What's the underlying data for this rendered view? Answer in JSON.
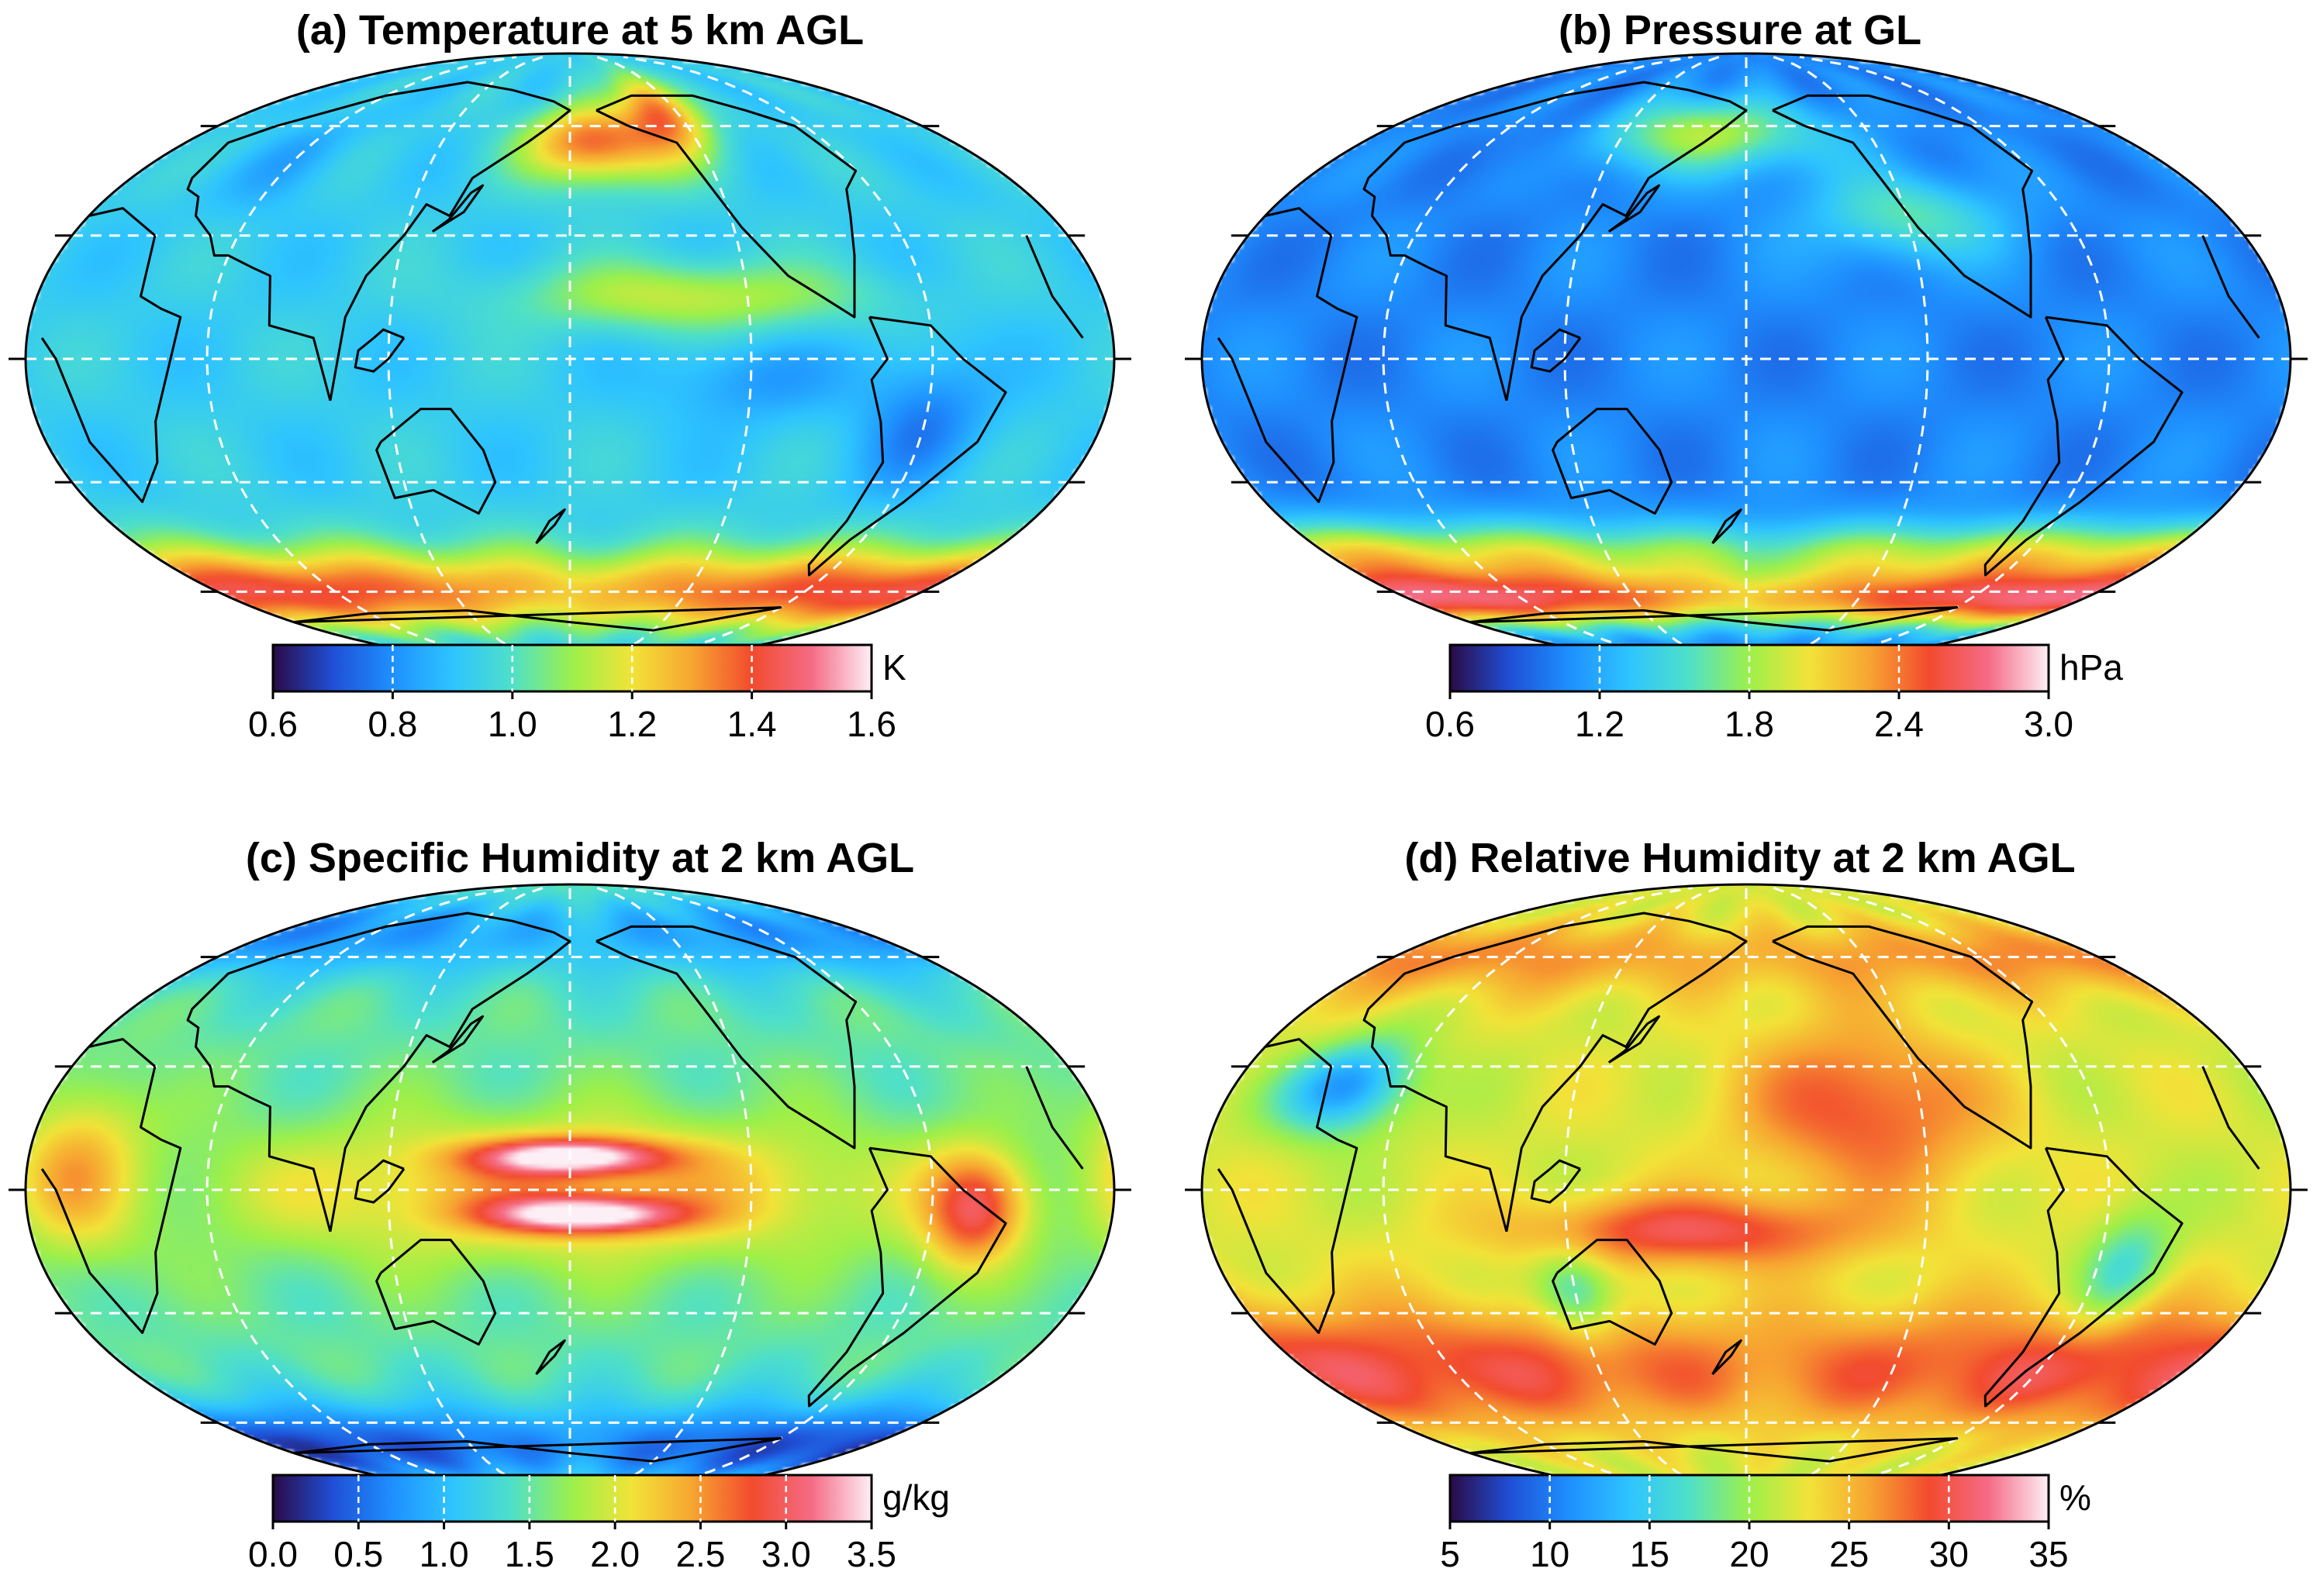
{
  "panels": [
    {
      "title": "(a) Temperature at 5 km AGL",
      "unit": "K",
      "ticks": [
        "0.6",
        "0.8",
        "1.0",
        "1.2",
        "1.4",
        "1.6"
      ],
      "colormap": [
        "#2b0a45",
        "#1f4fd6",
        "#1e90ff",
        "#2ec4ff",
        "#4fe0c8",
        "#9cf04a",
        "#f2e338",
        "#f7a531",
        "#f24b2e",
        "#f56b86",
        "#fdeff6"
      ],
      "field": {
        "base": 0.93,
        "blobs": [
          {
            "lon": -170,
            "lat": 55,
            "val": 1.38,
            "sl": 22,
            "sb": 8
          },
          {
            "lon": -130,
            "lat": 65,
            "val": 1.35,
            "sl": 15,
            "sb": 10
          },
          {
            "lon": 0,
            "lat": -60,
            "val": 1.43,
            "sl": 180,
            "sb": 9
          },
          {
            "lon": -140,
            "lat": 15,
            "val": 1.15,
            "sl": 40,
            "sb": 6
          },
          {
            "lon": -60,
            "lat": -15,
            "val": 0.78,
            "sl": 15,
            "sb": 12
          },
          {
            "lon": -120,
            "lat": -5,
            "val": 0.82,
            "sl": 20,
            "sb": 7
          },
          {
            "lon": 60,
            "lat": 50,
            "val": 0.86,
            "sl": 15,
            "sb": 10
          }
        ]
      }
    },
    {
      "title": "(b) Pressure at GL",
      "unit": "hPa",
      "ticks": [
        "0.6",
        "1.2",
        "1.8",
        "2.4",
        "3.0"
      ],
      "colormap": [
        "#2b0a45",
        "#1f4fd6",
        "#1e90ff",
        "#2ec4ff",
        "#4fe0c8",
        "#9cf04a",
        "#f2e338",
        "#f7a531",
        "#f24b2e",
        "#f56b86",
        "#fdeff6"
      ],
      "field": {
        "base": 1.05,
        "blobs": [
          {
            "lon": 0,
            "lat": -62,
            "val": 2.7,
            "sl": 180,
            "sb": 7
          },
          {
            "lon": 0,
            "lat": -48,
            "val": 1.85,
            "sl": 180,
            "sb": 6
          },
          {
            "lon": 160,
            "lat": 58,
            "val": 1.85,
            "sl": 40,
            "sb": 8
          },
          {
            "lon": -120,
            "lat": 35,
            "val": 1.6,
            "sl": 25,
            "sb": 8
          },
          {
            "lon": 90,
            "lat": 55,
            "val": 0.85,
            "sl": 15,
            "sb": 8
          }
        ]
      }
    },
    {
      "title": "(c) Specific Humidity at 2 km AGL",
      "unit": "g/kg",
      "ticks": [
        "0.0",
        "0.5",
        "1.0",
        "1.5",
        "2.0",
        "2.5",
        "3.0",
        "3.5"
      ],
      "colormap": [
        "#2b0a45",
        "#1f4fd6",
        "#1e90ff",
        "#2ec4ff",
        "#4fe0c8",
        "#9cf04a",
        "#f2e338",
        "#f7a531",
        "#f24b2e",
        "#f56b86",
        "#fdeff6"
      ],
      "field": {
        "base": 1.5,
        "blobs": [
          {
            "lon": 180,
            "lat": 8,
            "val": 3.2,
            "sl": 22,
            "sb": 3
          },
          {
            "lon": 185,
            "lat": -6,
            "val": 3.2,
            "sl": 22,
            "sb": 3
          },
          {
            "lon": 180,
            "lat": 0,
            "val": 2.4,
            "sl": 80,
            "sb": 12
          },
          {
            "lon": 0,
            "lat": -68,
            "val": 0.3,
            "sl": 180,
            "sb": 10
          },
          {
            "lon": 0,
            "lat": 68,
            "val": 0.7,
            "sl": 180,
            "sb": 10
          },
          {
            "lon": -45,
            "lat": -5,
            "val": 2.8,
            "sl": 12,
            "sb": 10
          },
          {
            "lon": 15,
            "lat": 5,
            "val": 2.3,
            "sl": 15,
            "sb": 15
          }
        ]
      }
    },
    {
      "title": "(d) Relative Humidity at 2 km AGL",
      "unit": "%",
      "ticks": [
        "5",
        "10",
        "15",
        "20",
        "25",
        "30",
        "35"
      ],
      "colormap": [
        "#2b0a45",
        "#1f4fd6",
        "#1e90ff",
        "#2ec4ff",
        "#4fe0c8",
        "#9cf04a",
        "#f2e338",
        "#f7a531",
        "#f24b2e",
        "#f56b86",
        "#fdeff6"
      ],
      "field": {
        "base": 22,
        "blobs": [
          {
            "lon": 0,
            "lat": -45,
            "val": 30,
            "sl": 180,
            "sb": 12
          },
          {
            "lon": -140,
            "lat": 20,
            "val": 29,
            "sl": 30,
            "sb": 15
          },
          {
            "lon": 160,
            "lat": -10,
            "val": 30,
            "sl": 40,
            "sb": 6
          },
          {
            "lon": 40,
            "lat": 25,
            "val": 11,
            "sl": 15,
            "sb": 8
          },
          {
            "lon": 120,
            "lat": -25,
            "val": 15,
            "sl": 10,
            "sb": 8
          },
          {
            "lon": -50,
            "lat": -20,
            "val": 16,
            "sl": 10,
            "sb": 10
          },
          {
            "lon": 0,
            "lat": 60,
            "val": 27,
            "sl": 180,
            "sb": 8
          }
        ]
      }
    }
  ]
}
